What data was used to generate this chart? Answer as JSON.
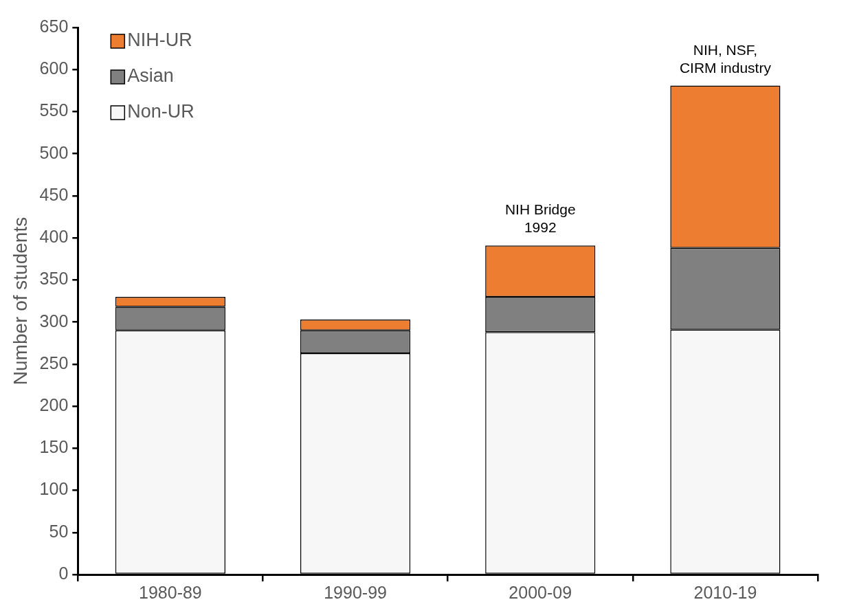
{
  "chart_data": {
    "type": "bar",
    "stacked": true,
    "ylabel": "Number of students",
    "categories": [
      "1980-89",
      "1990-99",
      "2000-09",
      "2010-19"
    ],
    "series": [
      {
        "name": "Non-UR",
        "color": "#f7f7f7",
        "values": [
          290,
          263,
          288,
          291
        ]
      },
      {
        "name": "Asian",
        "color": "#808080",
        "values": [
          28,
          27,
          42,
          97
        ]
      },
      {
        "name": "NIH-UR",
        "color": "#ed7d31",
        "values": [
          12,
          13,
          61,
          193
        ]
      }
    ],
    "ylim": [
      0,
      650
    ],
    "yticks": [
      0,
      50,
      100,
      150,
      200,
      250,
      300,
      350,
      400,
      450,
      500,
      550,
      600,
      650
    ],
    "grid": false,
    "legend": "top left",
    "annotations": [
      {
        "text": "NIH Bridge\n1992",
        "x": "2000-09",
        "y": 391
      },
      {
        "text": "NIH, NSF,\nCIRM industry",
        "x": "2010-19",
        "y": 581
      }
    ]
  }
}
